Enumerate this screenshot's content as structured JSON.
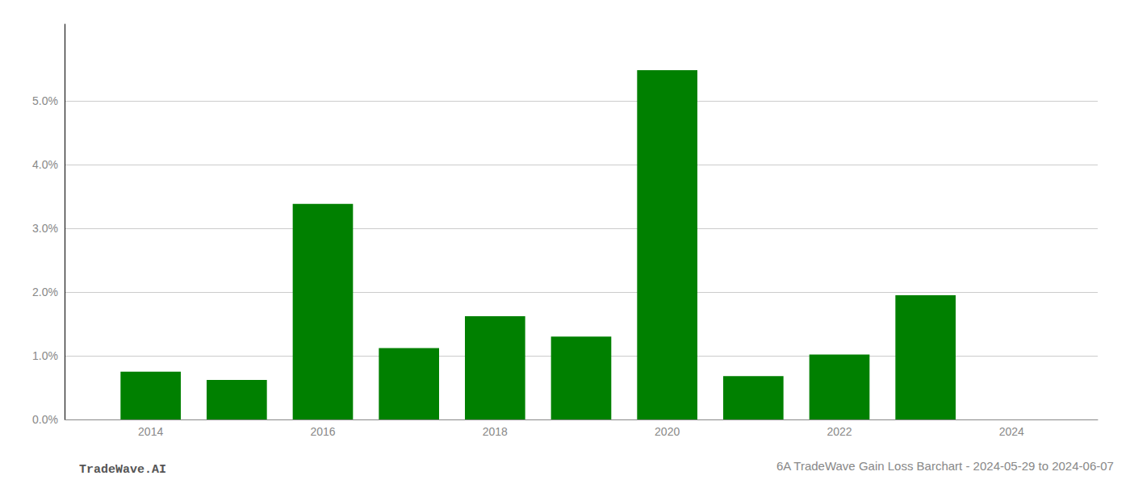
{
  "chart_data": {
    "type": "bar",
    "title": "6A TradeWave Gain Loss Barchart - 2024-05-29 to 2024-06-07",
    "annotations": [
      "TradeWave.AI"
    ],
    "x": [
      2014,
      2015,
      2016,
      2017,
      2018,
      2019,
      2020,
      2021,
      2022,
      2023,
      2024
    ],
    "values": [
      0.0075,
      0.0062,
      0.0338,
      0.0112,
      0.0162,
      0.013,
      0.0548,
      0.0068,
      0.0102,
      0.0195,
      0.0
    ],
    "color": "#008000",
    "xlim": [
      2013.0,
      2025.0
    ],
    "xticks": [
      2014,
      2016,
      2018,
      2020,
      2022,
      2024
    ],
    "ylim": [
      0,
      0.062
    ],
    "yticks": [
      {
        "value": 0.0,
        "label": "0.0%"
      },
      {
        "value": 0.01,
        "label": "1.0%"
      },
      {
        "value": 0.02,
        "label": "2.0%"
      },
      {
        "value": 0.03,
        "label": "3.0%"
      },
      {
        "value": 0.04,
        "label": "4.0%"
      },
      {
        "value": 0.05,
        "label": "5.0%"
      }
    ],
    "grid": true
  }
}
